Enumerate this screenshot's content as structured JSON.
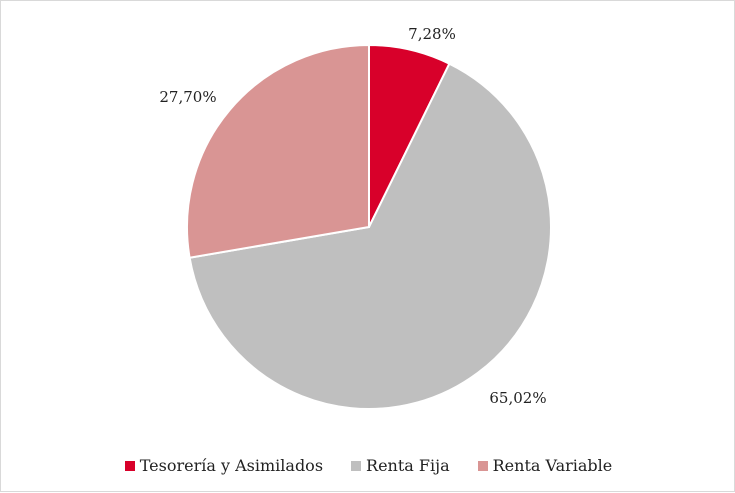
{
  "chart_data": {
    "type": "pie",
    "categories": [
      "Tesorería y Asimilados",
      "Renta Fija",
      "Renta Variable"
    ],
    "values": [
      7.28,
      65.02,
      27.7
    ],
    "labels": [
      "7,28%",
      "65,02%",
      "27,70%"
    ],
    "colors": [
      "#d8002a",
      "#bfbfbf",
      "#d99594"
    ],
    "start_angle": "12 o'clock",
    "direction": "clockwise",
    "legend_position": "bottom"
  }
}
